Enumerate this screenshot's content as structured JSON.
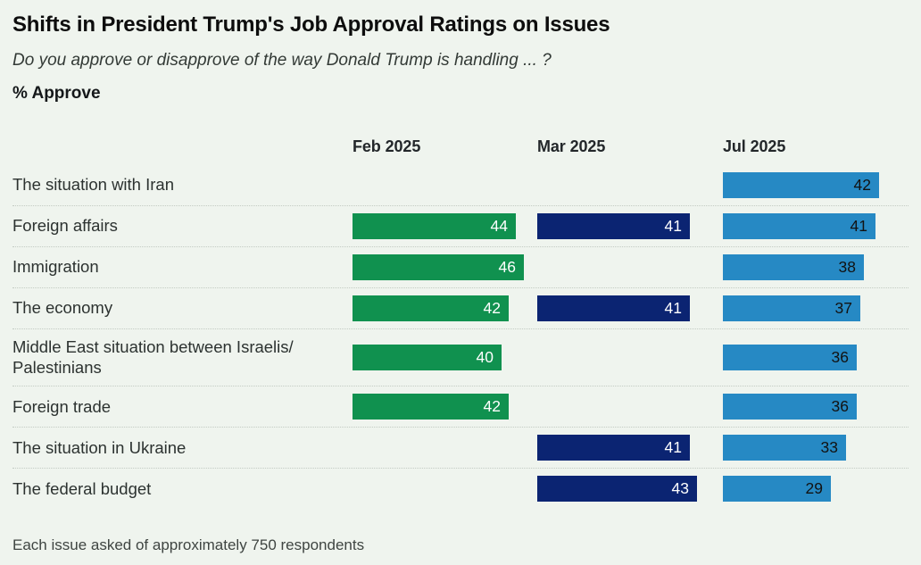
{
  "header": {
    "title": "Shifts in President Trump's Job Approval Ratings on Issues",
    "subtitle": "Do you approve or disapprove of the way Donald Trump is handling ... ?",
    "measure_label": "% Approve"
  },
  "chart_data": {
    "type": "bar",
    "orientation": "horizontal",
    "unit": "% approve",
    "xlim": [
      0,
      48
    ],
    "legend_position": "column-headers",
    "grid": "dotted-row-separators",
    "columns": [
      "Feb 2025",
      "Mar 2025",
      "Jul 2025"
    ],
    "series_colors": [
      "#10914f",
      "#0b2472",
      "#2689c4"
    ],
    "value_label_colors": [
      "#ffffff",
      "#ffffff",
      "#121212"
    ],
    "rows": [
      {
        "issue": "The situation with Iran",
        "values": [
          null,
          null,
          42
        ]
      },
      {
        "issue": "Foreign affairs",
        "values": [
          44,
          41,
          41
        ]
      },
      {
        "issue": "Immigration",
        "values": [
          46,
          null,
          38
        ]
      },
      {
        "issue": "The economy",
        "values": [
          42,
          41,
          37
        ]
      },
      {
        "issue": "Middle East situation between Israelis/ Palestinians",
        "values": [
          40,
          null,
          36
        ]
      },
      {
        "issue": "Foreign trade",
        "values": [
          42,
          null,
          36
        ]
      },
      {
        "issue": "The situation in Ukraine",
        "values": [
          null,
          41,
          33
        ]
      },
      {
        "issue": "The federal budget",
        "values": [
          null,
          43,
          29
        ]
      }
    ]
  },
  "footer": {
    "note": "Each issue asked of approximately 750 respondents"
  }
}
